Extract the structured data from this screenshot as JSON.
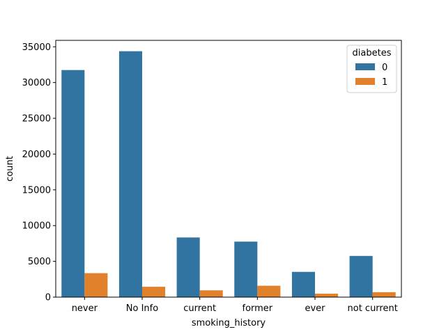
{
  "chart_data": {
    "type": "bar",
    "categories": [
      "never",
      "No Info",
      "current",
      "former",
      "ever",
      "not current"
    ],
    "series": [
      {
        "name": "0",
        "color": "#3274a1",
        "values": [
          31750,
          34380,
          8340,
          7760,
          3530,
          5760
        ]
      },
      {
        "name": "1",
        "color": "#e1812c",
        "values": [
          3350,
          1450,
          950,
          1590,
          480,
          690
        ]
      }
    ],
    "xlabel": "smoking_history",
    "ylabel": "count",
    "ylim": [
      0,
      35000
    ],
    "yticks": [
      0,
      5000,
      10000,
      15000,
      20000,
      25000,
      30000,
      35000
    ],
    "grid": false,
    "legend": {
      "title": "diabetes",
      "placement": "top-right"
    }
  }
}
